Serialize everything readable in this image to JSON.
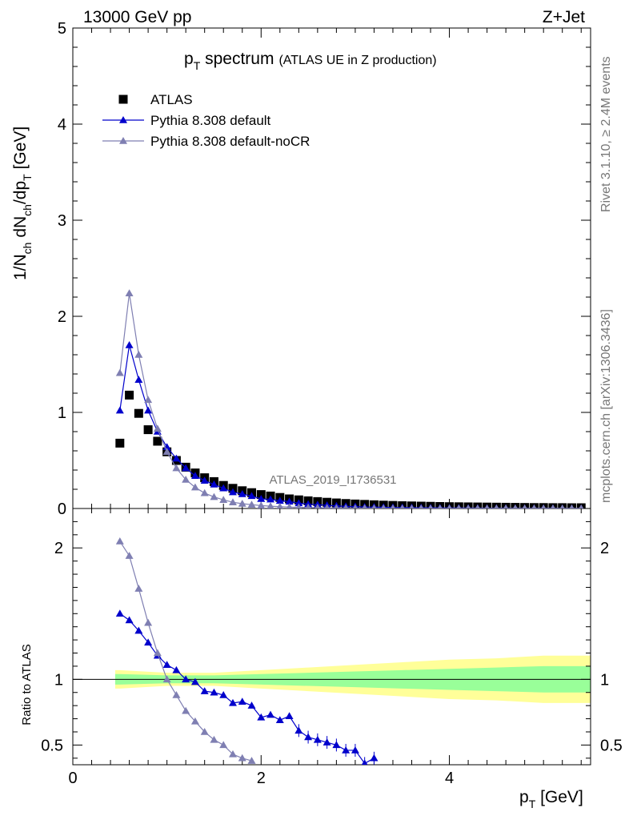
{
  "header": {
    "left": "13000 GeV pp",
    "right": "Z+Jet"
  },
  "side": {
    "rivet": "Rivet 3.1.10, ≥ 2.4M events",
    "mcplots": "mcplots.cern.ch [arXiv:1306.3436]"
  },
  "colors": {
    "atlas": "#000000",
    "default": "#0000cc",
    "nocr": "#7f7fb2",
    "band_inner": "#99ff99",
    "band_outer": "#ffff99"
  },
  "chart_data": [
    {
      "type": "scatter",
      "title_main": "p",
      "title_sub": "T",
      "title_rest": " spectrum",
      "title_paren": "(ATLAS UE in Z production)",
      "analysis_label": "ATLAS_2019_I1736531",
      "xlabel": "p",
      "xlabel_sub": "T",
      "xlabel_unit": " [GeV]",
      "ylabel_parts": [
        "1/N",
        "ch",
        " dN",
        "ch",
        "/dp",
        "T",
        " [GeV]"
      ],
      "xlim": [
        0,
        5.5
      ],
      "ylim": [
        0,
        5
      ],
      "yticks": [
        "0",
        "1",
        "2",
        "3",
        "4",
        "5"
      ],
      "xticks": [
        "0",
        "2",
        "4"
      ],
      "legend_placement": "top-left",
      "series": [
        {
          "name": "ATLAS",
          "marker": "square",
          "x": [
            0.5,
            0.6,
            0.7,
            0.8,
            0.9,
            1.0,
            1.1,
            1.2,
            1.3,
            1.4,
            1.5,
            1.6,
            1.7,
            1.8,
            1.9,
            2.0,
            2.1,
            2.2,
            2.3,
            2.4,
            2.5,
            2.6,
            2.7,
            2.8,
            2.9,
            3.0,
            3.1,
            3.2,
            3.3,
            3.4,
            3.5,
            3.6,
            3.7,
            3.8,
            3.9,
            4.0,
            4.1,
            4.2,
            4.3,
            4.4,
            4.5,
            4.6,
            4.7,
            4.8,
            4.9,
            5.0,
            5.1,
            5.2,
            5.3,
            5.4
          ],
          "y": [
            0.68,
            1.18,
            0.99,
            0.82,
            0.7,
            0.59,
            0.5,
            0.43,
            0.37,
            0.32,
            0.28,
            0.24,
            0.21,
            0.185,
            0.165,
            0.145,
            0.13,
            0.115,
            0.1,
            0.09,
            0.08,
            0.072,
            0.065,
            0.058,
            0.052,
            0.047,
            0.043,
            0.039,
            0.035,
            0.032,
            0.029,
            0.027,
            0.025,
            0.023,
            0.021,
            0.019,
            0.018,
            0.017,
            0.016,
            0.015,
            0.014,
            0.013,
            0.012,
            0.011,
            0.01,
            0.01,
            0.009,
            0.009,
            0.008,
            0.008
          ]
        },
        {
          "name": "Pythia 8.308 default",
          "marker": "triangle",
          "x": [
            0.5,
            0.6,
            0.7,
            0.8,
            0.9,
            1.0,
            1.1,
            1.2,
            1.3,
            1.4,
            1.5,
            1.6,
            1.7,
            1.8,
            1.9,
            2.0,
            2.1,
            2.2,
            2.3,
            2.4,
            2.5,
            2.6,
            2.7,
            2.8,
            2.9,
            3.0,
            3.1,
            3.2,
            3.3,
            3.4,
            3.5,
            3.6,
            3.7,
            3.8,
            3.9,
            4.0,
            4.1,
            4.2,
            4.3,
            4.4,
            4.5,
            4.6,
            4.7,
            4.8,
            4.9,
            5.0,
            5.1,
            5.2,
            5.3,
            5.4
          ],
          "y": [
            1.02,
            1.7,
            1.34,
            1.02,
            0.8,
            0.64,
            0.52,
            0.42,
            0.34,
            0.29,
            0.25,
            0.21,
            0.17,
            0.15,
            0.13,
            0.1,
            0.095,
            0.08,
            0.072,
            0.055,
            0.045,
            0.04,
            0.033,
            0.027,
            0.022,
            0.02,
            0.016,
            0.015,
            0.013,
            0.011,
            0.01,
            0.009,
            0.008,
            0.007,
            0.006,
            0.005,
            0.005,
            0.004,
            0.004,
            0.003,
            0.003,
            0.003,
            0.002,
            0.002,
            0.002,
            0.002,
            0.002,
            0.001,
            0.001,
            0.001
          ]
        },
        {
          "name": "Pythia 8.308 default-noCR",
          "marker": "triangle",
          "x": [
            0.5,
            0.6,
            0.7,
            0.8,
            0.9,
            1.0,
            1.1,
            1.2,
            1.3,
            1.4,
            1.5,
            1.6,
            1.7,
            1.8,
            1.9,
            2.0,
            2.1,
            2.2,
            2.3,
            2.4,
            2.5,
            2.6,
            2.7,
            2.8,
            2.9,
            3.0,
            3.1,
            3.2,
            3.3,
            3.4,
            3.5,
            3.6,
            3.7,
            3.8,
            3.9,
            4.0,
            4.1,
            4.2,
            4.3,
            4.4,
            4.5,
            4.6,
            4.7,
            4.8,
            4.9,
            5.0,
            5.1,
            5.2,
            5.3,
            5.4
          ],
          "y": [
            1.41,
            2.24,
            1.6,
            1.13,
            0.83,
            0.59,
            0.42,
            0.3,
            0.22,
            0.16,
            0.12,
            0.09,
            0.065,
            0.05,
            0.04,
            0.03,
            0.024,
            0.019,
            0.015,
            0.012,
            0.01,
            0.008,
            0.006,
            0.005,
            0.004,
            0.003,
            0.003,
            0.002,
            0.002,
            0.002,
            0.001,
            0.001,
            0.001,
            0.001,
            0.001,
            0.001,
            0.001,
            0.001,
            0.001,
            0.001,
            0.001,
            0.001,
            0.001,
            0.001,
            0.001,
            0.001,
            0.001,
            0.001,
            0.001,
            0.001
          ]
        }
      ]
    },
    {
      "type": "line",
      "ylabel": "Ratio to ATLAS",
      "xlim": [
        0,
        5.5
      ],
      "ylim": [
        0.35,
        2.3
      ],
      "yticks": [
        "0.5",
        "1",
        "2"
      ],
      "bands": {
        "x": [
          0.45,
          0.5,
          1.0,
          1.5,
          2.0,
          2.5,
          3.0,
          3.5,
          4.0,
          4.5,
          5.0,
          5.5
        ],
        "inner": [
          0.04,
          0.04,
          0.03,
          0.03,
          0.04,
          0.05,
          0.06,
          0.07,
          0.08,
          0.09,
          0.1,
          0.1
        ],
        "outer": [
          0.07,
          0.07,
          0.05,
          0.05,
          0.07,
          0.09,
          0.11,
          0.13,
          0.15,
          0.16,
          0.18,
          0.18
        ]
      },
      "series": [
        {
          "name": "Pythia 8.308 default",
          "x": [
            0.5,
            0.6,
            0.7,
            0.8,
            0.9,
            1.0,
            1.1,
            1.2,
            1.3,
            1.4,
            1.5,
            1.6,
            1.7,
            1.8,
            1.9,
            2.0,
            2.1,
            2.2,
            2.3,
            2.4,
            2.5,
            2.6,
            2.7,
            2.8,
            2.9,
            3.0,
            3.1,
            3.2
          ],
          "y": [
            1.5,
            1.45,
            1.37,
            1.28,
            1.18,
            1.11,
            1.07,
            1.0,
            0.98,
            0.91,
            0.9,
            0.88,
            0.82,
            0.83,
            0.8,
            0.71,
            0.73,
            0.69,
            0.72,
            0.61,
            0.56,
            0.54,
            0.52,
            0.5,
            0.46,
            0.46,
            0.36,
            0.4
          ]
        },
        {
          "name": "Pythia 8.308 default-noCR",
          "x": [
            0.5,
            0.6,
            0.7,
            0.8,
            0.9,
            1.0,
            1.1,
            1.2,
            1.3,
            1.4,
            1.5,
            1.6,
            1.7,
            1.8,
            1.9
          ],
          "y": [
            2.05,
            1.94,
            1.69,
            1.43,
            1.2,
            1.0,
            0.88,
            0.76,
            0.68,
            0.6,
            0.54,
            0.5,
            0.43,
            0.4,
            0.38
          ]
        }
      ]
    }
  ]
}
